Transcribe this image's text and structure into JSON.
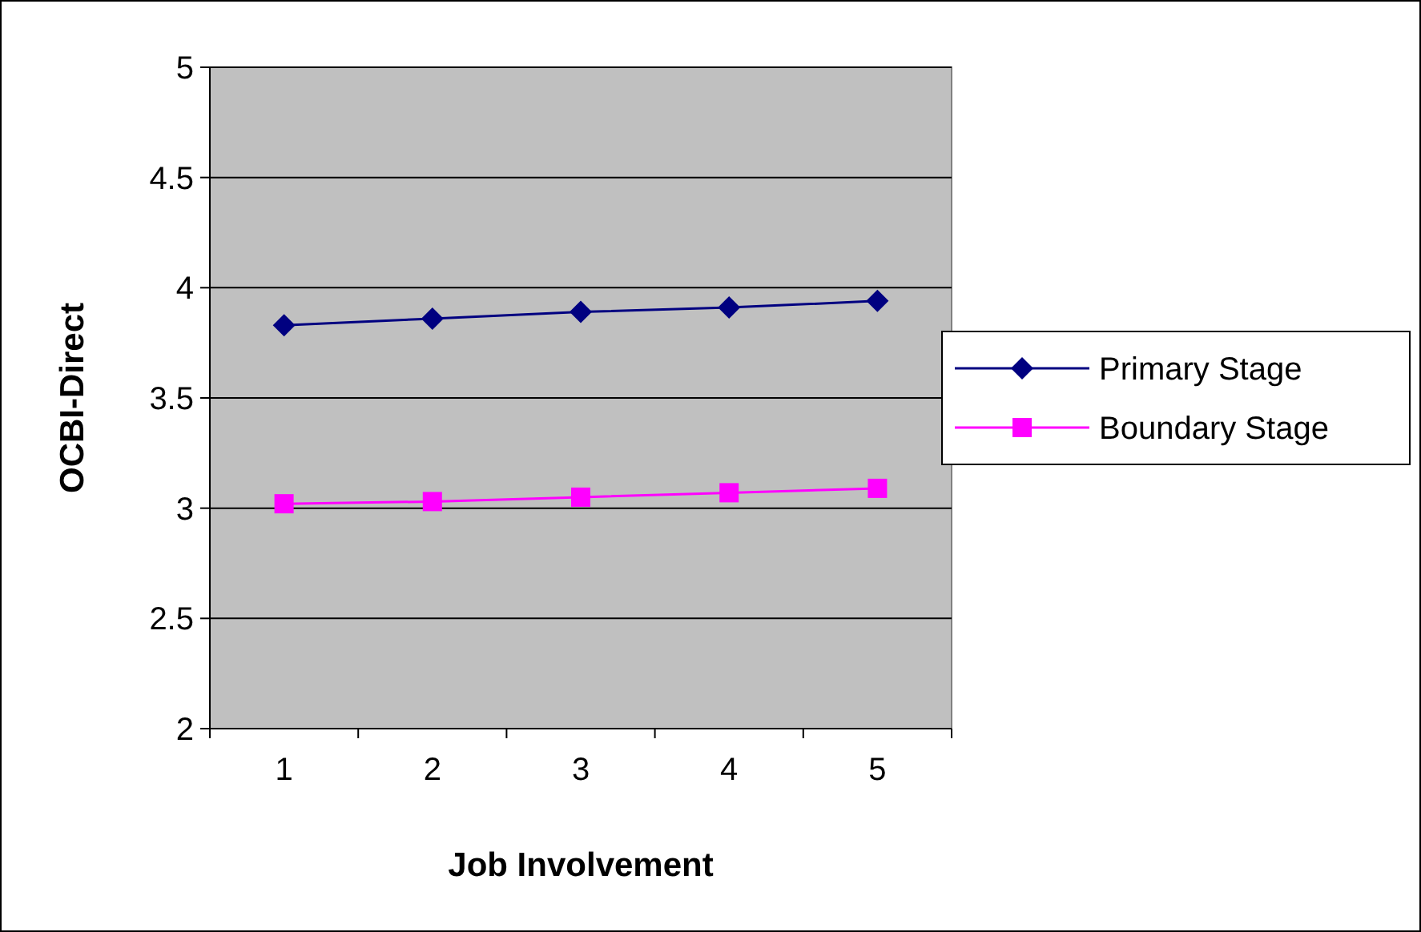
{
  "chart_data": {
    "type": "line",
    "xlabel": "Job Involvement",
    "ylabel": "OCBI-Direct",
    "categories": [
      "1",
      "2",
      "3",
      "4",
      "5"
    ],
    "series": [
      {
        "name": "Primary Stage",
        "color": "#000080",
        "marker": "diamond",
        "values": [
          3.83,
          3.86,
          3.89,
          3.91,
          3.94
        ]
      },
      {
        "name": "Boundary Stage",
        "color": "#ff00ff",
        "marker": "square",
        "values": [
          3.02,
          3.03,
          3.05,
          3.07,
          3.09
        ]
      }
    ],
    "ylim": [
      2,
      5
    ],
    "yticks": [
      2,
      2.5,
      3,
      3.5,
      4,
      4.5,
      5
    ],
    "grid": "y",
    "legend": "right"
  }
}
